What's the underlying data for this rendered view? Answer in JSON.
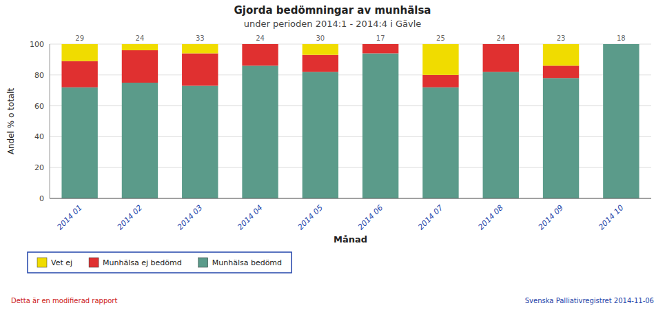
{
  "chart_data": {
    "type": "bar",
    "stacked": true,
    "title": "Gjorda bedömningar av munhälsa",
    "subtitle": "under perioden 2014:1 - 2014:4 i Gävle",
    "x_label": "Månad",
    "y_label": "Andel % o totalt",
    "categories": [
      "2014 01",
      "2014 02",
      "2014 03",
      "2014 04",
      "2014 05",
      "2014 06",
      "2014 07",
      "2014 08",
      "2014 09",
      "2014 10"
    ],
    "counts": [
      29,
      24,
      33,
      24,
      30,
      17,
      25,
      24,
      23,
      18
    ],
    "series": [
      {
        "name": "Munhälsa bedömd",
        "color": "#5B9B8A",
        "values": [
          72,
          75,
          73,
          86,
          82,
          94,
          72,
          82,
          78,
          100
        ]
      },
      {
        "name": "Munhälsa ej bedömd",
        "color": "#E03030",
        "values": [
          17,
          21,
          21,
          14,
          11,
          6,
          8,
          18,
          8,
          0
        ]
      },
      {
        "name": "Vet ej",
        "color": "#F0DC00",
        "values": [
          11,
          4,
          6,
          0,
          7,
          0,
          20,
          0,
          14,
          0
        ]
      }
    ],
    "ylim": [
      0,
      100
    ],
    "yticks": [
      0,
      20,
      40,
      60,
      80,
      100
    ],
    "grid": true,
    "legend": "bottom",
    "footnotes": [
      "Detta är en modifierad rapport",
      "Svenska Palliativregistret 2014-11-06"
    ]
  }
}
